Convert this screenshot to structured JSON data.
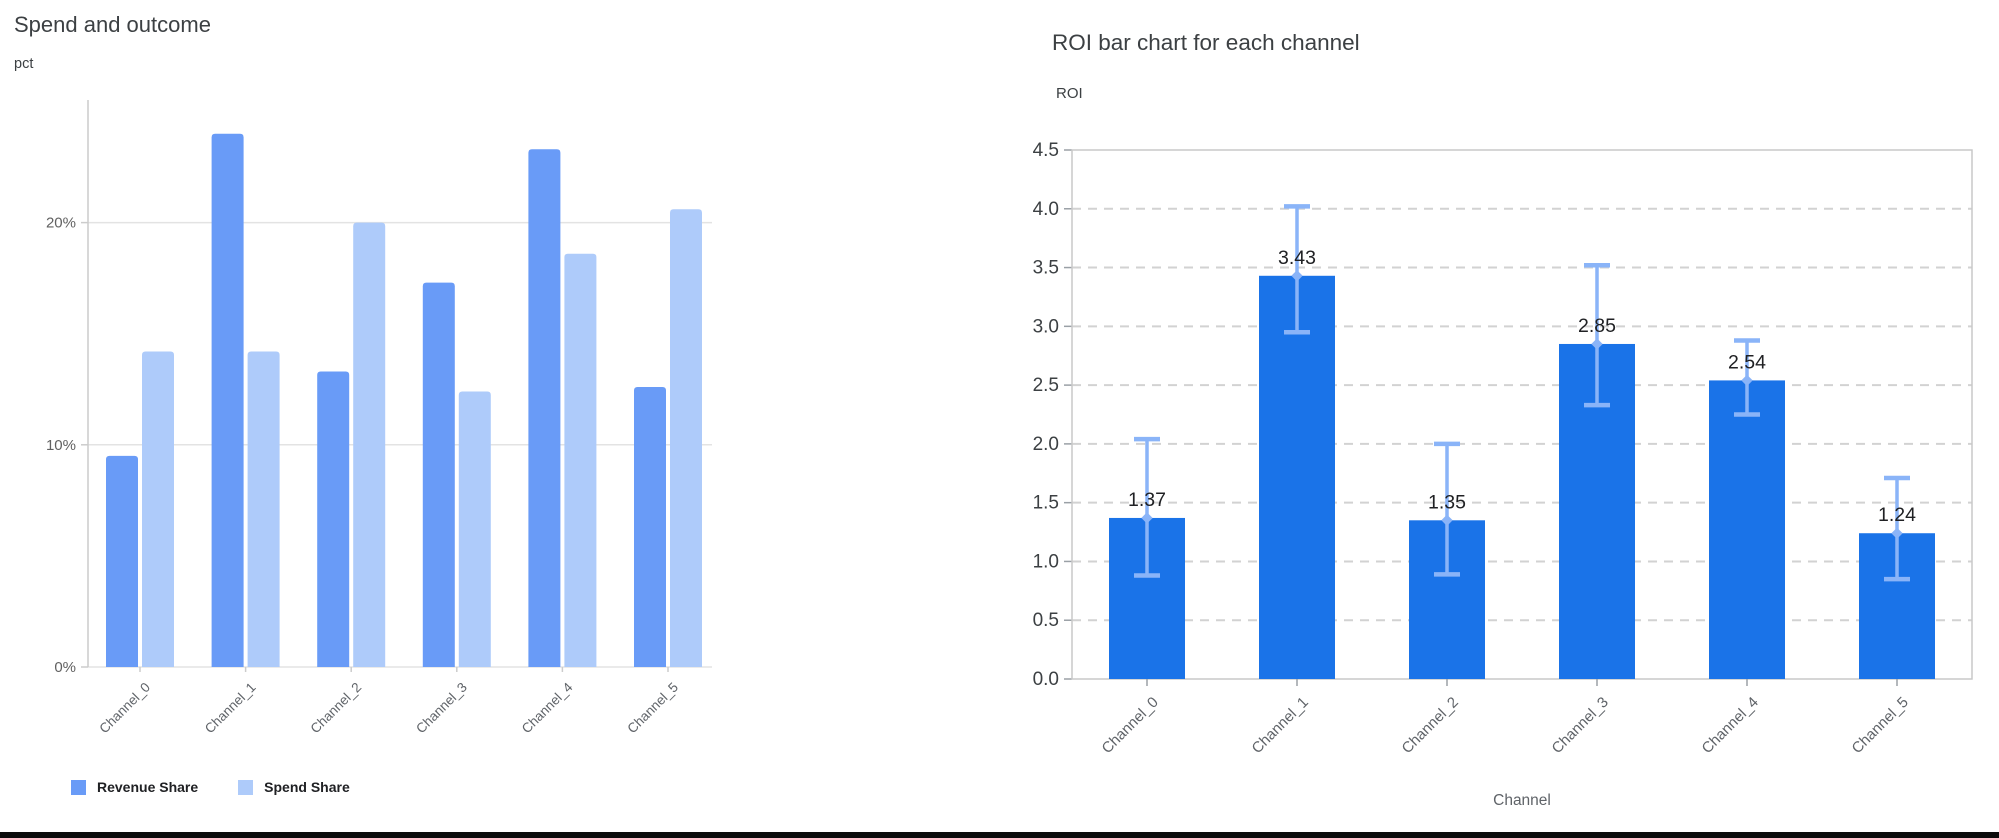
{
  "chart_data": [
    {
      "type": "bar",
      "title": "Spend and outcome",
      "ylabel": "pct",
      "xlabel": "",
      "categories": [
        "Channel_0",
        "Channel_1",
        "Channel_2",
        "Channel_3",
        "Channel_4",
        "Channel_5"
      ],
      "series": [
        {
          "name": "Revenue Share",
          "color": "#699bf7",
          "values": [
            9.5,
            24.0,
            13.3,
            17.3,
            23.3,
            12.6
          ]
        },
        {
          "name": "Spend Share",
          "color": "#aecbfa",
          "values": [
            14.2,
            14.2,
            20.0,
            12.4,
            18.6,
            20.6
          ]
        }
      ],
      "unit": "%",
      "y_ticks": [
        {
          "label": "0%",
          "value": 0
        },
        {
          "label": "10%",
          "value": 10
        },
        {
          "label": "20%",
          "value": 20
        }
      ],
      "ylim": [
        0,
        25.5
      ],
      "grid": "horizontal-solid",
      "legend_position": "bottom-left"
    },
    {
      "type": "bar",
      "title": "ROI bar chart for each channel",
      "ylabel": "ROI",
      "xlabel": "Channel",
      "categories": [
        "Channel_0",
        "Channel_1",
        "Channel_2",
        "Channel_3",
        "Channel_4",
        "Channel_5"
      ],
      "values": [
        1.37,
        3.43,
        1.35,
        2.85,
        2.54,
        1.24
      ],
      "value_labels": [
        "1.37",
        "3.43",
        "1.35",
        "2.85",
        "2.54",
        "1.24"
      ],
      "error_low": [
        0.88,
        2.95,
        0.89,
        2.33,
        2.25,
        0.85
      ],
      "error_high": [
        2.04,
        4.02,
        2.0,
        3.52,
        2.88,
        1.71
      ],
      "bar_color": "#1a73e8",
      "error_color": "#8ab4f8",
      "y_ticks": [
        "0.0",
        "0.5",
        "1.0",
        "1.5",
        "2.0",
        "2.5",
        "3.0",
        "3.5",
        "4.0",
        "4.5"
      ],
      "ylim": [
        0,
        4.5
      ],
      "grid": "horizontal-dashed",
      "legend_position": "none"
    }
  ],
  "colors": {
    "grid_solid": "#e3e3e3",
    "axis_line": "#cccccc",
    "grid_dashed": "#d2d2d2",
    "plot_border": "#c9c9c9",
    "tick_text_left": "#616161",
    "tick_text_right": "#3c4043",
    "category_text": "#5f6368",
    "value_text": "#202124",
    "bottom_bar": "#0b0b0b"
  }
}
